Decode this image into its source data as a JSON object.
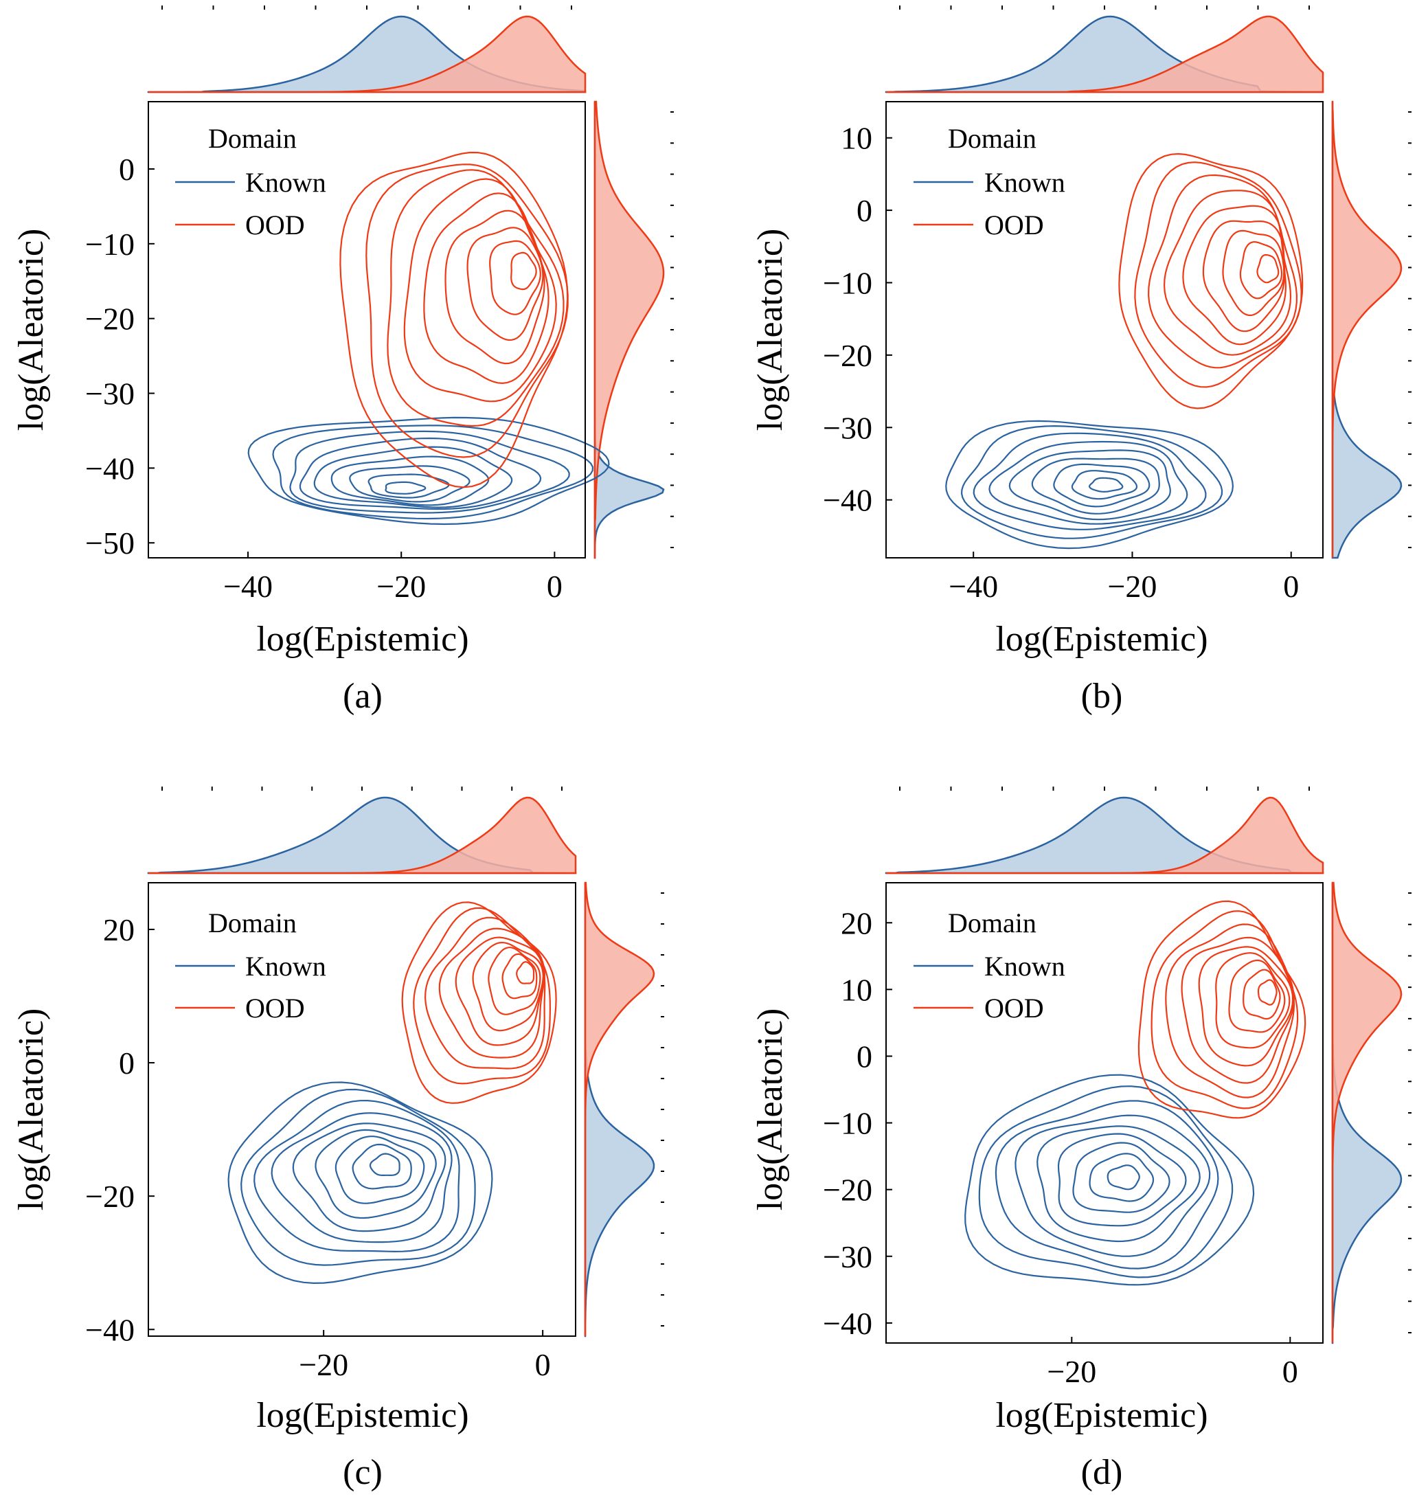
{
  "figure": {
    "colors": {
      "known": "#2b63a0",
      "ood": "#ee3b16",
      "known_fill": "#b9cfe3",
      "ood_fill": "#f8b0a2",
      "axis": "#000000"
    },
    "panels": [
      {
        "id": "a",
        "caption": "(a)",
        "legend": {
          "title": "Domain",
          "entries": [
            "Known",
            "OOD"
          ]
        },
        "chart_data": {
          "type": "kde-contour-joint",
          "xlabel": "log(Epistemic)",
          "ylabel": "log(Aleatoric)",
          "xlim": [
            -53,
            4
          ],
          "ylim": [
            -52,
            9
          ],
          "xticks": [
            -40,
            -20,
            0
          ],
          "xtick_labels": [
            "−40",
            "−20",
            "0"
          ],
          "yticks": [
            0,
            -10,
            -20,
            -30,
            -40,
            -50
          ],
          "ytick_labels": [
            "0",
            "−10",
            "−20",
            "−30",
            "−40",
            "−50"
          ],
          "series": [
            {
              "name": "Known",
              "x_center": -20,
              "y_center": -43,
              "x_spread": 9,
              "y_spread": 2.2,
              "x_range": [
                -40,
                6
              ],
              "y_range": [
                -47,
                -33
              ],
              "x_peak": -20,
              "y_peak": -43,
              "levels": 9
            },
            {
              "name": "OOD",
              "x_center": -6,
              "y_center": -17,
              "x_spread": 7,
              "y_spread": 10,
              "x_range": [
                -28,
                1
              ],
              "y_range": [
                -41,
                3
              ],
              "x_peak": -3,
              "y_peak": -13,
              "levels": 9
            }
          ]
        }
      },
      {
        "id": "b",
        "caption": "(b)",
        "legend": {
          "title": "Domain",
          "entries": [
            "Known",
            "OOD"
          ]
        },
        "chart_data": {
          "type": "kde-contour-joint",
          "xlabel": "log(Epistemic)",
          "ylabel": "log(Aleatoric)",
          "xlim": [
            -51,
            4
          ],
          "ylim": [
            -48,
            15
          ],
          "xticks": [
            -40,
            -20,
            0
          ],
          "xtick_labels": [
            "−40",
            "−20",
            "0"
          ],
          "yticks": [
            10,
            0,
            -10,
            -20,
            -30,
            -40
          ],
          "ytick_labels": [
            "10",
            "0",
            "−10",
            "−20",
            "−30",
            "−40"
          ],
          "series": [
            {
              "name": "Known",
              "x_center": -22,
              "y_center": -38,
              "x_spread": 9,
              "y_spread": 5,
              "x_range": [
                -44,
                -8
              ],
              "y_range": [
                -46,
                -29
              ],
              "x_peak": -23,
              "y_peak": -38,
              "levels": 9
            },
            {
              "name": "OOD",
              "x_center": -7,
              "y_center": -8,
              "x_spread": 7,
              "y_spread": 7,
              "x_range": [
                -22,
                1
              ],
              "y_range": [
                -26,
                8
              ],
              "x_peak": -2,
              "y_peak": -8,
              "levels": 9
            }
          ]
        }
      },
      {
        "id": "c",
        "caption": "(c)",
        "legend": {
          "title": "Domain",
          "entries": [
            "Known",
            "OOD"
          ]
        },
        "chart_data": {
          "type": "kde-contour-joint",
          "xlabel": "log(Epistemic)",
          "ylabel": "log(Aleatoric)",
          "xlim": [
            -36,
            3
          ],
          "ylim": [
            -41,
            27
          ],
          "xticks": [
            -20,
            0
          ],
          "xtick_labels": [
            "−20",
            "0"
          ],
          "yticks": [
            20,
            0,
            -20,
            -40
          ],
          "ytick_labels": [
            "20",
            "0",
            "−20",
            "−40"
          ],
          "series": [
            {
              "name": "Known",
              "x_center": -16,
              "y_center": -17,
              "x_spread": 6.5,
              "y_spread": 6.5,
              "x_range": [
                -29,
                -5
              ],
              "y_range": [
                -33,
                -4
              ],
              "x_peak": -14,
              "y_peak": -15,
              "levels": 9
            },
            {
              "name": "OOD",
              "x_center": -3,
              "y_center": 11,
              "x_spread": 4,
              "y_spread": 5.5,
              "x_range": [
                -13,
                1
              ],
              "y_range": [
                -6,
                23
              ],
              "x_peak": -1,
              "y_peak": 14,
              "levels": 9
            }
          ]
        }
      },
      {
        "id": "d",
        "caption": "(d)",
        "legend": {
          "title": "Domain",
          "entries": [
            "Known",
            "OOD"
          ]
        },
        "chart_data": {
          "type": "kde-contour-joint",
          "xlabel": "log(Epistemic)",
          "ylabel": "log(Aleatoric)",
          "xlim": [
            -37,
            3
          ],
          "ylim": [
            -43,
            26
          ],
          "xticks": [
            -20,
            0
          ],
          "xtick_labels": [
            "−20",
            "0"
          ],
          "yticks": [
            20,
            10,
            0,
            -10,
            -20,
            -30,
            -40
          ],
          "ytick_labels": [
            "20",
            "10",
            "0",
            "−10",
            "−20",
            "−30",
            "−40"
          ],
          "series": [
            {
              "name": "Known",
              "x_center": -16,
              "y_center": -20,
              "x_spread": 7,
              "y_spread": 7,
              "x_range": [
                -30,
                -4
              ],
              "y_range": [
                -35,
                -4
              ],
              "x_peak": -15,
              "y_peak": -18,
              "levels": 9
            },
            {
              "name": "OOD",
              "x_center": -3,
              "y_center": 7,
              "x_spread": 3.5,
              "y_spread": 7,
              "x_range": [
                -14,
                1
              ],
              "y_range": [
                -10,
                22
              ],
              "x_peak": -1.5,
              "y_peak": 10,
              "levels": 9
            }
          ]
        }
      }
    ]
  }
}
